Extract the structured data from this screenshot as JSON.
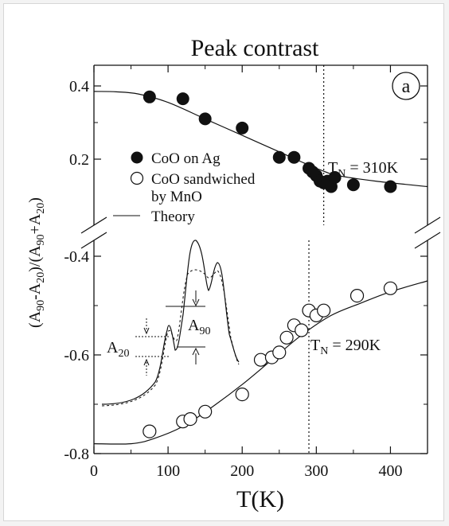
{
  "chart_data": {
    "type": "scatter",
    "title": "Peak contrast",
    "panel_label": "a",
    "xlabel": "T(K)",
    "ylabel": "(A90-A20)/(A90+A20)",
    "xlim": [
      0,
      450
    ],
    "x_ticks": [
      0,
      100,
      200,
      300,
      400
    ],
    "upper_ylim": [
      0.1,
      0.4
    ],
    "upper_y_ticks": [
      0.2,
      0.4
    ],
    "lower_ylim": [
      -0.8,
      -0.35
    ],
    "lower_y_ticks": [
      -0.4,
      -0.6,
      -0.8
    ],
    "axis_break": true,
    "legend_placement": "middle-left",
    "series": [
      {
        "name": "CoO on Ag",
        "marker": "filled-circle",
        "points": [
          [
            75,
            0.37
          ],
          [
            120,
            0.365
          ],
          [
            150,
            0.31
          ],
          [
            200,
            0.285
          ],
          [
            250,
            0.205
          ],
          [
            270,
            0.205
          ],
          [
            290,
            0.175
          ],
          [
            295,
            0.165
          ],
          [
            300,
            0.155
          ],
          [
            305,
            0.14
          ],
          [
            310,
            0.135
          ],
          [
            315,
            0.14
          ],
          [
            320,
            0.125
          ],
          [
            325,
            0.15
          ],
          [
            350,
            0.13
          ],
          [
            400,
            0.125
          ]
        ]
      },
      {
        "name": "CoO sandwiched by MnO",
        "marker": "open-circle",
        "points": [
          [
            75,
            -0.755
          ],
          [
            120,
            -0.735
          ],
          [
            130,
            -0.73
          ],
          [
            150,
            -0.715
          ],
          [
            200,
            -0.68
          ],
          [
            225,
            -0.61
          ],
          [
            240,
            -0.605
          ],
          [
            250,
            -0.595
          ],
          [
            260,
            -0.565
          ],
          [
            270,
            -0.54
          ],
          [
            280,
            -0.55
          ],
          [
            290,
            -0.51
          ],
          [
            300,
            -0.52
          ],
          [
            310,
            -0.51
          ],
          [
            355,
            -0.48
          ],
          [
            400,
            -0.465
          ]
        ]
      }
    ],
    "theory_curves": [
      {
        "name": "Theory",
        "points": [
          [
            0,
            0.385
          ],
          [
            30,
            0.384
          ],
          [
            60,
            0.378
          ],
          [
            100,
            0.355
          ],
          [
            150,
            0.31
          ],
          [
            200,
            0.265
          ],
          [
            250,
            0.22
          ],
          [
            300,
            0.175
          ],
          [
            330,
            0.155
          ],
          [
            380,
            0.14
          ],
          [
            450,
            0.125
          ]
        ]
      },
      {
        "points": [
          [
            0,
            -0.78
          ],
          [
            50,
            -0.78
          ],
          [
            80,
            -0.77
          ],
          [
            120,
            -0.745
          ],
          [
            160,
            -0.705
          ],
          [
            200,
            -0.66
          ],
          [
            240,
            -0.61
          ],
          [
            280,
            -0.56
          ],
          [
            320,
            -0.52
          ],
          [
            360,
            -0.495
          ],
          [
            400,
            -0.472
          ],
          [
            450,
            -0.45
          ]
        ]
      }
    ],
    "annotations": {
      "tn_upper": {
        "text": "T_N = 310K",
        "x": 310
      },
      "tn_lower": {
        "text": "T_N = 290K",
        "x": 290
      }
    },
    "inset": {
      "labels": {
        "a90": "A90",
        "a20": "A20"
      }
    }
  }
}
